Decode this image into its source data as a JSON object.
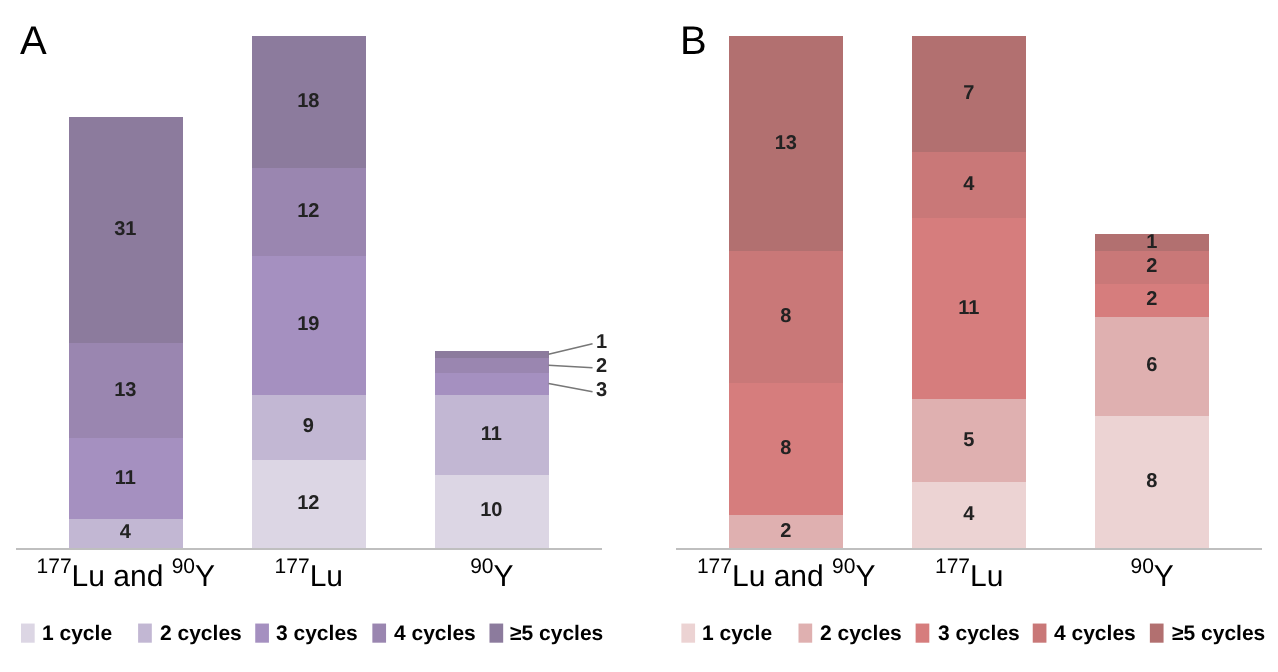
{
  "chart_data": [
    {
      "type": "bar",
      "title": "A",
      "stacked": true,
      "data_labels": true,
      "legend": "bottom",
      "categories": [
        "$^{177}$Lu and $^{90}$Y",
        "$^{177}$Lu",
        "$^{90}$Y"
      ],
      "series": [
        {
          "name": "1 cycle",
          "color": "#dcd6e4",
          "values": [
            null,
            12,
            10
          ]
        },
        {
          "name": "2 cycles",
          "color": "#c2b7d3",
          "values": [
            4,
            9,
            11
          ]
        },
        {
          "name": "3 cycles",
          "color": "#a590c0",
          "values": [
            11,
            19,
            3
          ]
        },
        {
          "name": "4 cycles",
          "color": "#9a86b0",
          "values": [
            13,
            12,
            2
          ]
        },
        {
          "name": "≥5 cycles",
          "color": "#8c7b9d",
          "values": [
            31,
            18,
            1
          ]
        }
      ]
    },
    {
      "type": "bar",
      "title": "B",
      "stacked": true,
      "data_labels": true,
      "legend": "bottom",
      "categories": [
        "$^{177}$Lu and $^{90}$Y",
        "$^{177}$Lu",
        "$^{90}$Y"
      ],
      "series": [
        {
          "name": "1 cycle",
          "color": "#ecd3d3",
          "values": [
            null,
            4,
            8
          ]
        },
        {
          "name": "2 cycles",
          "color": "#dfb0b0",
          "values": [
            2,
            5,
            6
          ]
        },
        {
          "name": "3 cycles",
          "color": "#d67d7d",
          "values": [
            8,
            11,
            2
          ]
        },
        {
          "name": "4 cycles",
          "color": "#c97878",
          "values": [
            8,
            4,
            2
          ]
        },
        {
          "name": "≥5 cycles",
          "color": "#b27070",
          "values": [
            13,
            7,
            1
          ]
        }
      ]
    }
  ]
}
